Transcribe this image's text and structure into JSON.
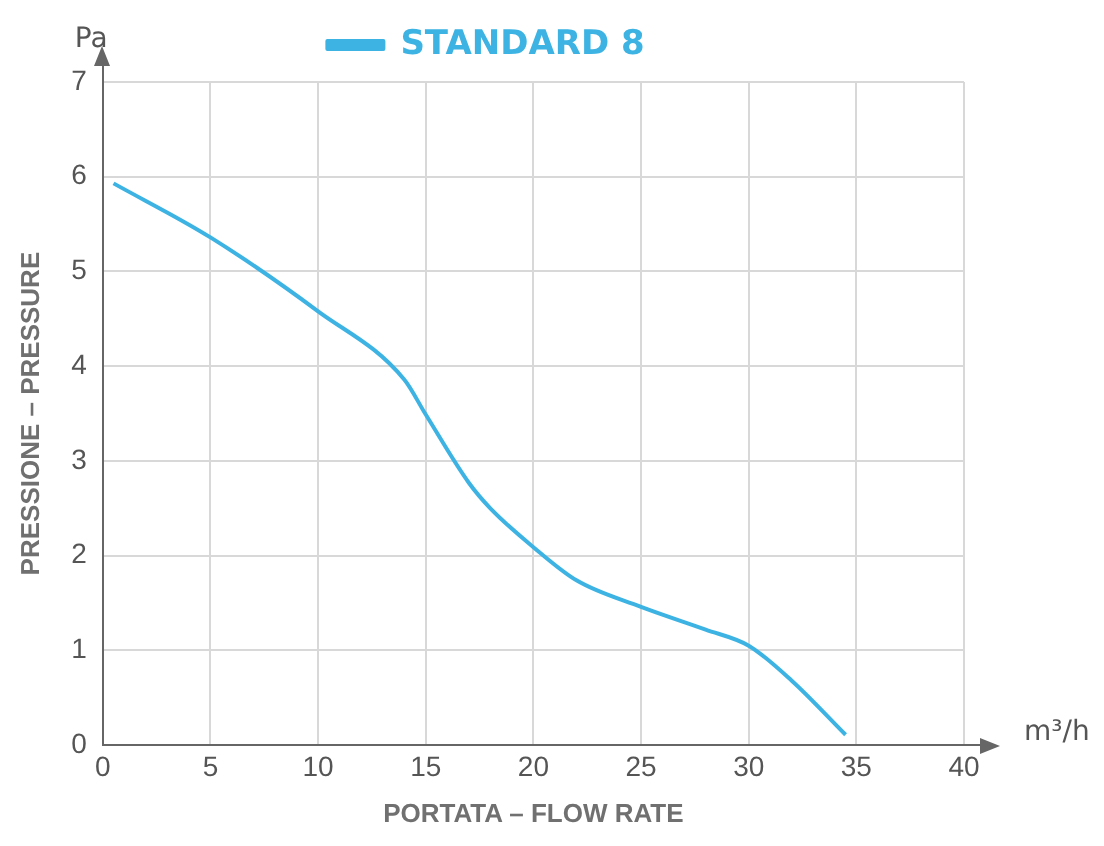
{
  "chart_data": {
    "type": "line",
    "xlabel": "PORTATA – FLOW RATE",
    "ylabel": "PRESSIONE – PRESSURE",
    "annotations": [
      "Pa",
      "m³/h"
    ],
    "series": [
      {
        "name": "STANDARD 8",
        "color": "#3db3e3",
        "x": [
          0.5,
          5,
          10,
          14,
          15,
          17,
          18,
          20,
          22,
          25,
          28,
          30,
          32,
          34.5
        ],
        "values": [
          5.93,
          5.36,
          4.58,
          3.86,
          3.49,
          2.77,
          2.5,
          2.09,
          1.74,
          1.46,
          1.22,
          1.05,
          0.68,
          0.11
        ]
      }
    ],
    "xlim": [
      0,
      40
    ],
    "xticks": [
      0,
      5,
      10,
      15,
      20,
      25,
      30,
      35,
      40
    ],
    "ylim": [
      0,
      7
    ],
    "yticks": [
      0,
      1,
      2,
      3,
      4,
      5,
      6,
      7
    ],
    "grid": true,
    "legend": "top",
    "marker": "none",
    "line_style": "solid"
  }
}
